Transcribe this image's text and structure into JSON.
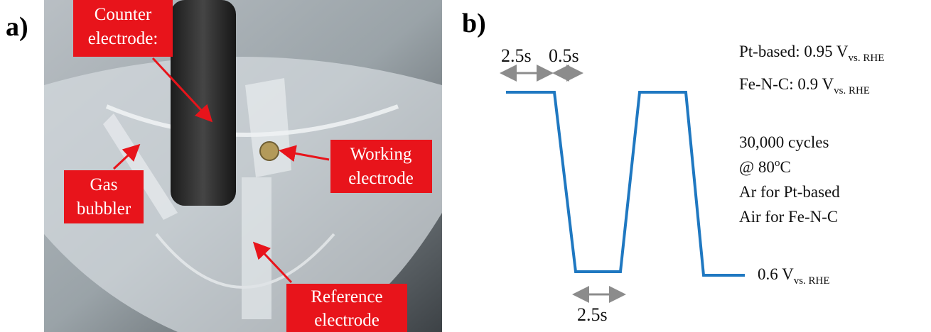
{
  "panel_a": {
    "label": "a)",
    "callouts": [
      {
        "lines": [
          "Counter",
          "electrode:"
        ]
      },
      {
        "lines": [
          "Gas",
          "bubbler"
        ]
      },
      {
        "lines": [
          "Working",
          "electrode"
        ]
      },
      {
        "lines": [
          "Reference",
          "electrode"
        ]
      }
    ]
  },
  "panel_b": {
    "label": "b)",
    "durations": [
      "2.5s",
      "0.5s",
      "2.5s"
    ],
    "upper_potentials": [
      {
        "text": "Pt-based: 0.95 V",
        "subscript": "vs. RHE"
      },
      {
        "text": "Fe-N-C: 0.9 V",
        "subscript": "vs. RHE"
      }
    ],
    "cycles": "30,000 cycles",
    "temperature": {
      "text": "@ 80",
      "superscript": "o",
      "tail": "C"
    },
    "atmospheres": [
      "Ar for Pt-based",
      "Air for Fe-N-C"
    ],
    "lower_potential": {
      "text": "0.6 V",
      "subscript": "vs. RHE"
    }
  }
}
